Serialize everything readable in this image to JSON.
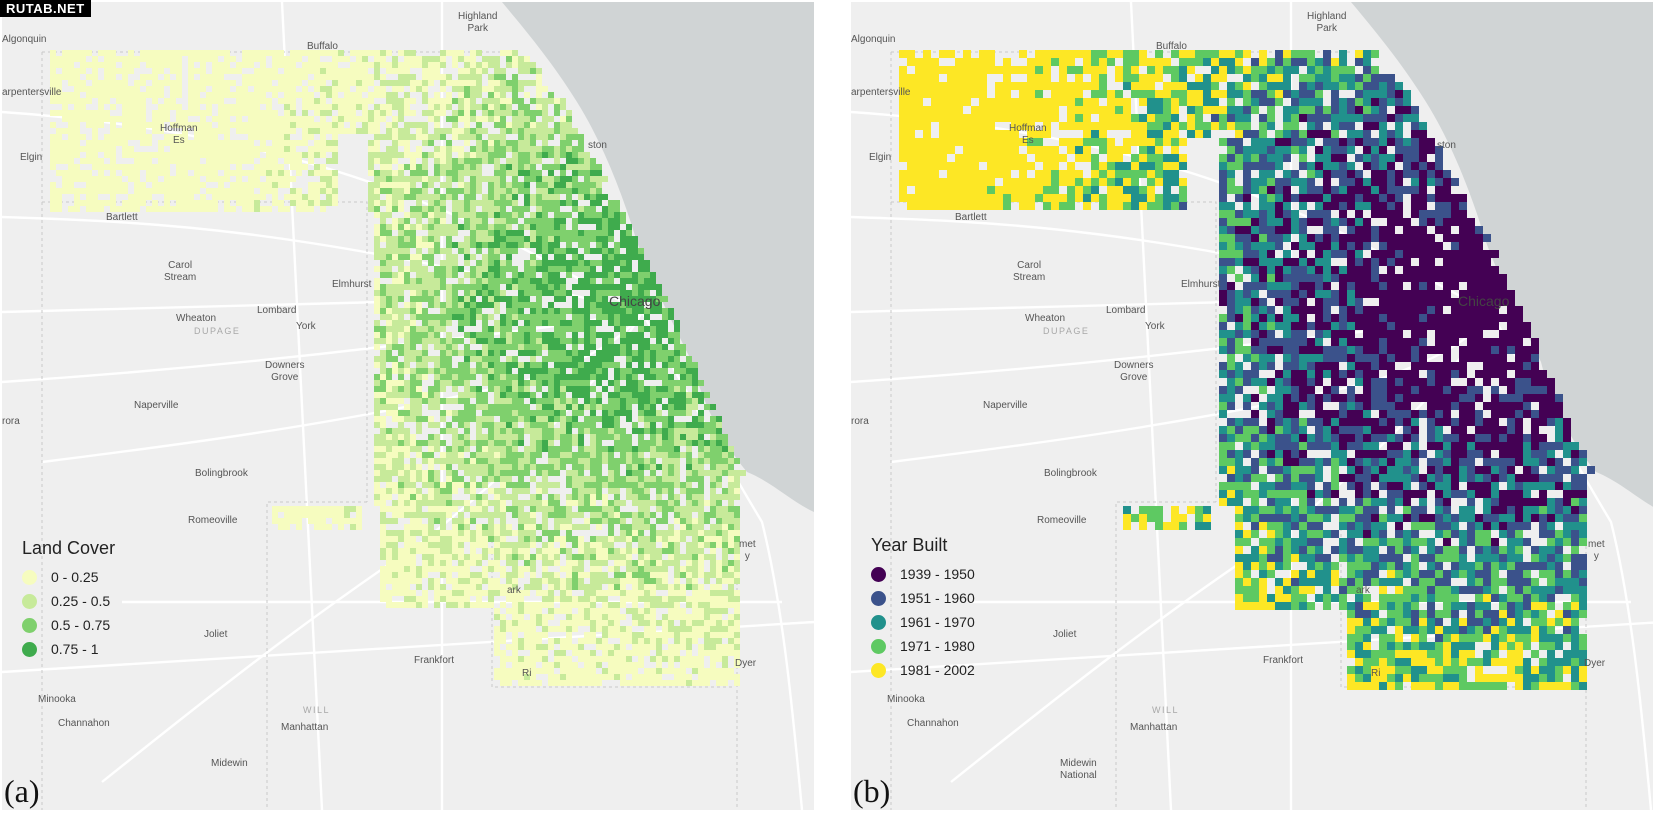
{
  "watermark": "RUTAB.NET",
  "panels": [
    {
      "id": "a",
      "tag": "(a)",
      "legend": {
        "title": "Land Cover",
        "items": [
          {
            "label": "0 - 0.25",
            "color": "#f6fcbf"
          },
          {
            "label": "0.25 - 0.5",
            "color": "#c7ea9a"
          },
          {
            "label": "0.5 - 0.75",
            "color": "#7fd06d"
          },
          {
            "label": "0.75 - 1",
            "color": "#3fab4d"
          }
        ]
      }
    },
    {
      "id": "b",
      "tag": "(b)",
      "legend": {
        "title": "Year Built",
        "items": [
          {
            "label": "1939 - 1950",
            "color": "#440154"
          },
          {
            "label": "1951 - 1960",
            "color": "#3b528b"
          },
          {
            "label": "1961 - 1970",
            "color": "#21918c"
          },
          {
            "label": "1971 - 1980",
            "color": "#5ec962"
          },
          {
            "label": "1981 - 2002",
            "color": "#fde725"
          }
        ]
      }
    }
  ],
  "places": {
    "algonquin": "Algonquin",
    "highland_park": "Highland\nPark",
    "buffalo": "Buffalo",
    "carpentersville": "arpentersville",
    "hoffman": "Hoffman\nEs",
    "elgin": "Elgin",
    "evanston": "ston",
    "bartlett": "Bartlett",
    "carol_stream": "Carol\nStream",
    "elmhurst": "Elmhurst",
    "chicago": "Chicago",
    "lombard": "Lombard",
    "wheaton": "Wheaton",
    "dupage": "DUPAGE",
    "york": "York",
    "downers_grove": "Downers\nGrove",
    "naperville": "Naperville",
    "aurora": "rora",
    "bolingbrook": "Bolingbrook",
    "romeoville": "Romeoville",
    "joliet": "Joliet",
    "frankfort": "Frankfort",
    "minooka": "Minooka",
    "channahon": "Channahon",
    "will": "WILL",
    "manhattan": "Manhattan",
    "midewin": "Midewin",
    "midewin_national": "National",
    "dyer": "Dyer",
    "park": "ark",
    "richton": "Ri",
    "calumet": "met\ny"
  }
}
